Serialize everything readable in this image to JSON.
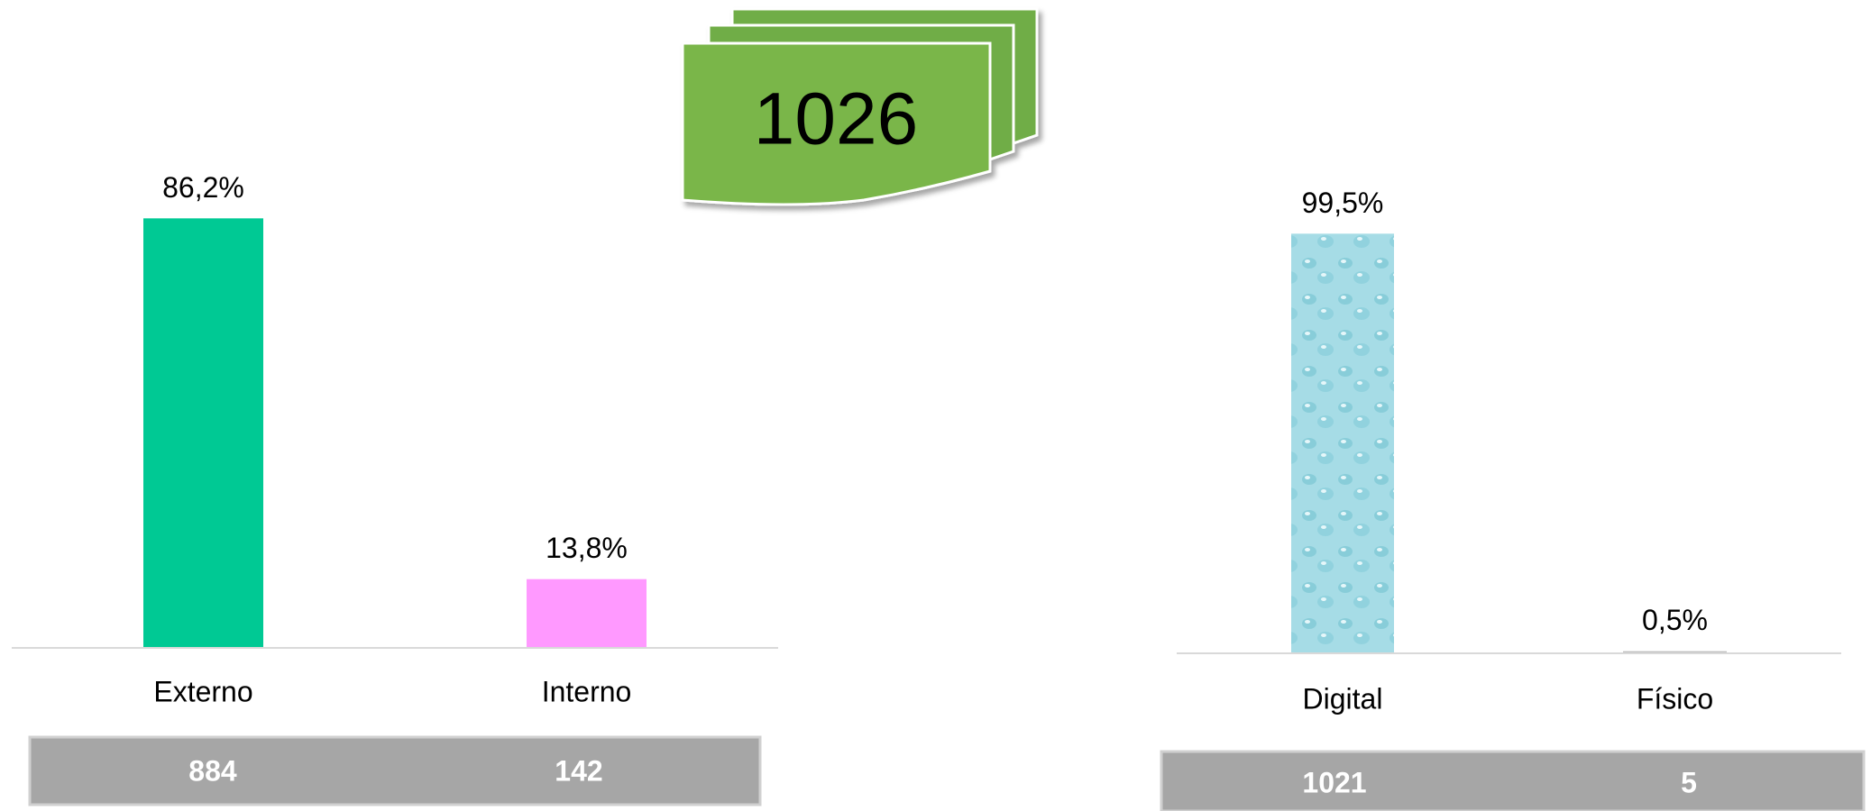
{
  "total": 1026,
  "chart_data": [
    {
      "type": "bar",
      "categories": [
        "Externo",
        "Interno"
      ],
      "values": [
        86.2,
        13.8
      ],
      "value_labels": [
        "86,2%",
        "13,8%"
      ],
      "colors": [
        "#00c994",
        "#ff99ff"
      ],
      "counts": [
        884,
        142
      ]
    },
    {
      "type": "bar",
      "categories": [
        "Digital",
        "Físico"
      ],
      "values": [
        99.5,
        0.5
      ],
      "value_labels": [
        "99,5%",
        "0,5%"
      ],
      "colors": [
        "url(#drops)",
        "#bfbfbf"
      ],
      "counts": [
        1021,
        5
      ]
    }
  ]
}
